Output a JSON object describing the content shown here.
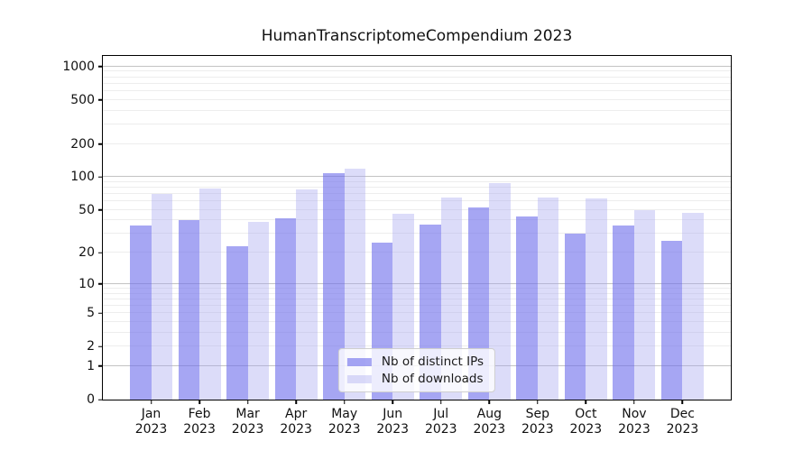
{
  "chart_data": {
    "type": "bar",
    "title": "HumanTranscriptomeCompendium 2023",
    "categories": [
      "Jan",
      "Feb",
      "Mar",
      "Apr",
      "May",
      "Jun",
      "Jul",
      "Aug",
      "Sep",
      "Oct",
      "Nov",
      "Dec"
    ],
    "category_year": "2023",
    "series": [
      {
        "name": "Nb of distinct IPs",
        "color": "rgba(112,112,236,0.62)",
        "values": [
          36,
          40,
          23,
          42,
          108,
          25,
          37,
          53,
          44,
          30,
          36,
          26
        ]
      },
      {
        "name": "Nb of downloads",
        "color": "rgba(163,163,239,0.38)",
        "values": [
          70,
          79,
          39,
          77,
          120,
          46,
          65,
          88,
          65,
          64,
          50,
          47
        ]
      }
    ],
    "y_scale": "log1p",
    "y_ticks": [
      0,
      1,
      2,
      5,
      10,
      20,
      50,
      100,
      200,
      500,
      1000
    ],
    "y_major_gridlines": [
      1,
      10,
      100,
      1000
    ],
    "y_minor_decades": [
      1,
      10,
      100
    ],
    "y_max": 1244,
    "xlabel": "",
    "ylabel": "",
    "grid": true,
    "legend_position": "lower center",
    "colors": {
      "grid_major": "#c3c3c3",
      "grid_minor": "#ededed",
      "spine": "#000000",
      "text": "#1a1a1a"
    }
  }
}
